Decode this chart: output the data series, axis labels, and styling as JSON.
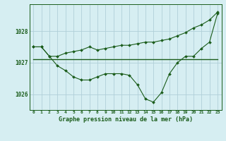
{
  "background_color": "#d6eef2",
  "grid_color": "#b0cfd8",
  "line_color": "#1a5c1a",
  "title": "Graphe pression niveau de la mer (hPa)",
  "xlim": [
    -0.5,
    23.5
  ],
  "ylim": [
    1025.5,
    1028.85
  ],
  "yticks": [
    1026,
    1027,
    1028
  ],
  "xticks": [
    0,
    1,
    2,
    3,
    4,
    5,
    6,
    7,
    8,
    9,
    10,
    11,
    12,
    13,
    14,
    15,
    16,
    17,
    18,
    19,
    20,
    21,
    22,
    23
  ],
  "line1_x": [
    0,
    1,
    2,
    3,
    4,
    5,
    6,
    7,
    8,
    9,
    10,
    11,
    12,
    13,
    14,
    15,
    16,
    17,
    18,
    19,
    20,
    21,
    22,
    23
  ],
  "line1_y": [
    1027.5,
    1027.5,
    1027.2,
    1026.9,
    1026.75,
    1026.55,
    1026.45,
    1026.45,
    1026.55,
    1026.65,
    1026.65,
    1026.65,
    1026.6,
    1026.3,
    1025.85,
    1025.75,
    1026.05,
    1026.65,
    1027.0,
    1027.2,
    1027.2,
    1027.45,
    1027.65,
    1028.55
  ],
  "line2_x": [
    0,
    23
  ],
  "line2_y": [
    1027.1,
    1027.1
  ],
  "line3_x": [
    0,
    1,
    2,
    3,
    4,
    5,
    6,
    7,
    8,
    9,
    10,
    11,
    12,
    13,
    14,
    15,
    16,
    17,
    18,
    19,
    20,
    21,
    22,
    23
  ],
  "line3_y": [
    1027.5,
    1027.5,
    1027.2,
    1027.2,
    1027.3,
    1027.35,
    1027.4,
    1027.5,
    1027.4,
    1027.45,
    1027.5,
    1027.55,
    1027.55,
    1027.6,
    1027.65,
    1027.65,
    1027.7,
    1027.75,
    1027.85,
    1027.95,
    1028.1,
    1028.2,
    1028.35,
    1028.6
  ]
}
